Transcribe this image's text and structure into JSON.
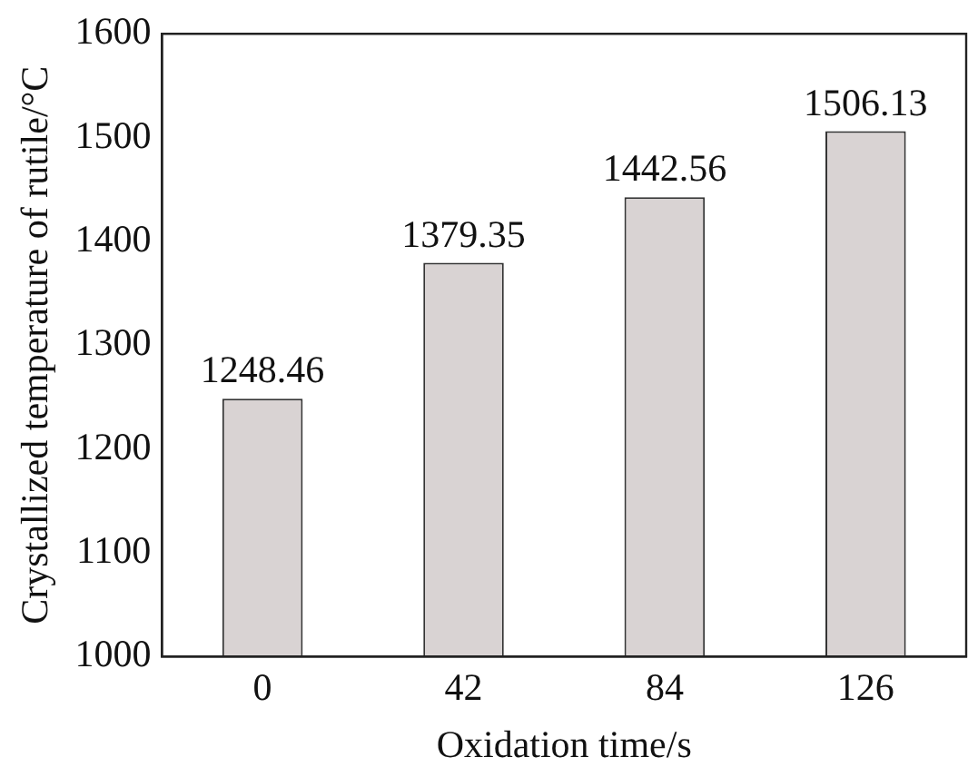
{
  "chart_data": {
    "type": "bar",
    "xlabel": "Oxidation time/s",
    "ylabel": "Crystallized temperature of rutile/°C",
    "categories": [
      "0",
      "42",
      "84",
      "126"
    ],
    "values": [
      1248.46,
      1379.35,
      1442.56,
      1506.13
    ],
    "color": "#d9d3d3",
    "ylim": [
      1000,
      1600
    ],
    "yticks": [
      1000,
      1100,
      1200,
      1300,
      1400,
      1500,
      1600
    ],
    "data_labels": true,
    "grid": false,
    "legend": false
  }
}
